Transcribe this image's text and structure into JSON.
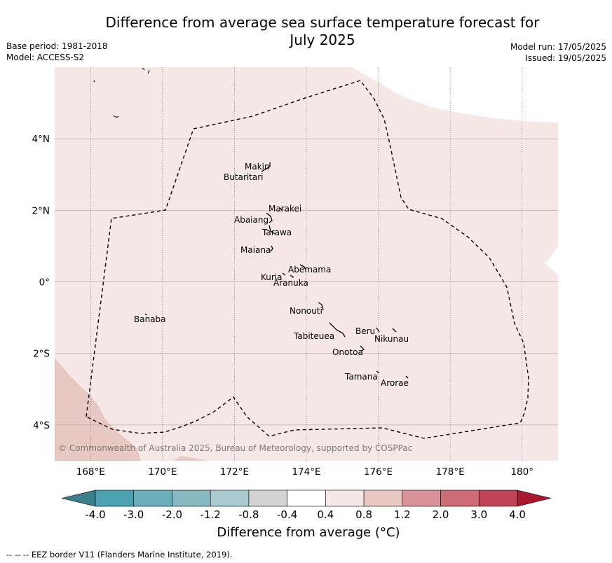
{
  "title": {
    "line1": "Difference from average sea surface temperature forecast for",
    "line2": "July 2025"
  },
  "meta_left": {
    "base_period": "Base period: 1981-2018",
    "model": "Model: ACCESS-S2"
  },
  "meta_right": {
    "model_run": "Model run: 17/05/2025",
    "issued": "Issued: 19/05/2025"
  },
  "map": {
    "lon_range": [
      167,
      181
    ],
    "lat_range": [
      -5,
      6
    ],
    "lon_ticks": [
      {
        "value": 168,
        "label": "168°E"
      },
      {
        "value": 170,
        "label": "170°E"
      },
      {
        "value": 172,
        "label": "172°E"
      },
      {
        "value": 174,
        "label": "174°E"
      },
      {
        "value": 176,
        "label": "176°E"
      },
      {
        "value": 178,
        "label": "178°E"
      },
      {
        "value": 180,
        "label": "180°"
      }
    ],
    "lat_ticks": [
      {
        "value": 4,
        "label": "4°N"
      },
      {
        "value": 2,
        "label": "2°N"
      },
      {
        "value": 0,
        "label": "0°"
      },
      {
        "value": -2,
        "label": "2°S"
      },
      {
        "value": -4,
        "label": "4°S"
      }
    ],
    "colors": {
      "ocean_0_4_to_0_8": "#f5e8e6",
      "warm_0_8_to_1_2": "#e8c8c3",
      "eez_border": "#000000",
      "coast": "#000000"
    },
    "islands": [
      {
        "name": "Makin",
        "lon": 172.95,
        "lat": 3.2
      },
      {
        "name": "Butaritari",
        "lon": 172.8,
        "lat": 3.05
      },
      {
        "name": "Marakei",
        "lon": 173.3,
        "lat": 2.0
      },
      {
        "name": "Abaiang",
        "lon": 172.95,
        "lat": 1.78
      },
      {
        "name": "Tarawa",
        "lon": 173.0,
        "lat": 1.42
      },
      {
        "name": "Maiana",
        "lon": 173.0,
        "lat": 1.0
      },
      {
        "name": "Abemama",
        "lon": 173.85,
        "lat": 0.45
      },
      {
        "name": "Kuria",
        "lon": 173.4,
        "lat": 0.23
      },
      {
        "name": "Aranuka",
        "lon": 173.6,
        "lat": 0.15
      },
      {
        "name": "Nonouti",
        "lon": 174.4,
        "lat": -0.65
      },
      {
        "name": "Tabiteuea",
        "lon": 174.8,
        "lat": -1.25
      },
      {
        "name": "Beru",
        "lon": 175.98,
        "lat": -1.33
      },
      {
        "name": "Nikunau",
        "lon": 176.45,
        "lat": -1.35
      },
      {
        "name": "Onotoa",
        "lon": 175.55,
        "lat": -1.8
      },
      {
        "name": "Tamana",
        "lon": 175.98,
        "lat": -2.5
      },
      {
        "name": "Arorae",
        "lon": 176.82,
        "lat": -2.65
      },
      {
        "name": "Banaba",
        "lon": 169.53,
        "lat": -0.86
      }
    ],
    "copyright": "© Commonwealth of Australia 2025, Bureau of Meteorology, supported by COSPPac"
  },
  "colorbar": {
    "tick_labels": [
      "-4.0",
      "-3.0",
      "-2.0",
      "-1.2",
      "-0.8",
      "-0.4",
      "0.4",
      "0.8",
      "1.2",
      "2.0",
      "3.0",
      "4.0"
    ],
    "under_color": "#3a7f8c",
    "over_color": "#a8182f",
    "segment_colors": [
      "#4aa1b0",
      "#6aaebb",
      "#88b9c2",
      "#a9cbcf",
      "#d3d3d3",
      "#ffffff",
      "#f5e8e6",
      "#e8c8c3",
      "#d99299",
      "#cc6b74",
      "#c04556"
    ],
    "label": "Difference from average (°C)"
  },
  "footer": "--  --  -- EEZ border V11 (Flanders Marine Institute, 2019)."
}
